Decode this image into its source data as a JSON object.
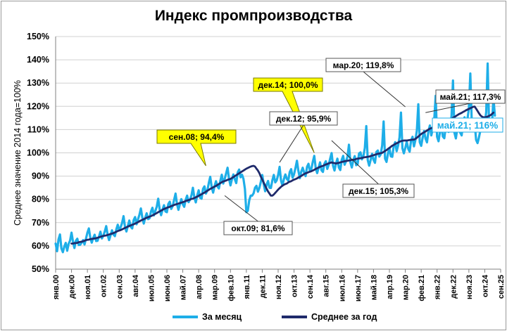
{
  "chart_data": {
    "type": "line",
    "title": "Индекс промпроизводства",
    "ylabel": "Среднее значение 2014 года=100%",
    "xlabel": "",
    "ylim": [
      50,
      150
    ],
    "y_ticks": [
      "50%",
      "60%",
      "70%",
      "80%",
      "90%",
      "100%",
      "110%",
      "120%",
      "130%",
      "140%",
      "150%"
    ],
    "x_ticks": [
      "янв.00",
      "дек.00",
      "ноя.01",
      "окт.02",
      "сен.03",
      "авг.04",
      "июл.05",
      "июн.06",
      "май.07",
      "апр.08",
      "мар.09",
      "фев.10",
      "янв.11",
      "дек.11",
      "ноя.12",
      "окт.13",
      "сен.14",
      "авг.15",
      "июл.16",
      "июн.17",
      "май.18",
      "апр.19",
      "мар.20",
      "фев.21",
      "янв.22",
      "дек.22",
      "ноя.23",
      "окт.24",
      "сен.25"
    ],
    "grid": true,
    "legend_position": "bottom",
    "series": [
      {
        "name": "За месяц",
        "color": "#1eaee8",
        "x_start": "янв.00",
        "x_end": "май.21",
        "frequency": "monthly",
        "values": [
          61.0,
          57.7,
          62.8,
          64.9,
          58.9,
          57.3,
          59.7,
          61.3,
          57.9,
          60.9,
          62.3,
          65.7,
          61.9,
          59.1,
          62.2,
          63.1,
          60.4,
          60.5,
          61.4,
          62.5,
          60.6,
          63.1,
          65.7,
          67.5,
          63.5,
          61.4,
          63.4,
          64.8,
          62.1,
          62.2,
          64.0,
          66.1,
          63.2,
          64.3,
          66.2,
          68.5,
          64.7,
          62.5,
          64.5,
          66.7,
          64.9,
          64.2,
          67.1,
          69.1,
          66.7,
          68.0,
          69.9,
          72.8,
          68.2,
          66.2,
          68.6,
          70.9,
          68.2,
          67.5,
          71.1,
          72.4,
          69.3,
          71.4,
          73.4,
          76.1,
          72.2,
          69.6,
          72.1,
          74.0,
          71.5,
          71.9,
          74.8,
          76.4,
          73.1,
          75.0,
          76.9,
          80.3,
          75.7,
          73.2,
          75.6,
          77.5,
          74.8,
          74.5,
          78.0,
          79.0,
          75.9,
          77.1,
          79.8,
          82.5,
          77.9,
          75.5,
          77.9,
          80.1,
          77.9,
          76.8,
          79.8,
          81.6,
          78.8,
          79.9,
          81.7,
          85.0,
          80.8,
          78.7,
          81.7,
          83.9,
          80.7,
          80.3,
          84.5,
          85.6,
          82.5,
          83.8,
          87.0,
          89.7,
          85.3,
          82.9,
          85.7,
          87.8,
          85.5,
          84.7,
          88.0,
          90.6,
          86.8,
          88.8,
          91.2,
          93.6,
          88.8,
          86.0,
          88.6,
          90.7,
          88.7,
          87.0,
          91.6,
          92.8,
          89.5,
          90.6,
          88.8,
          84.5,
          74.5,
          75.1,
          79.6,
          81.6,
          81.6,
          82.6,
          85.0,
          85.8,
          83.3,
          84.9,
          87.5,
          90.5,
          86.6,
          83.5,
          86.3,
          87.9,
          85.0,
          84.9,
          88.2,
          90.5,
          87.3,
          88.2,
          90.5,
          94.0,
          88.1,
          85.9,
          88.8,
          90.7,
          88.8,
          88.1,
          91.7,
          93.0,
          89.3,
          90.8,
          93.5,
          96.6,
          92.3,
          89.1,
          91.9,
          93.6,
          91.5,
          90.0,
          94.0,
          95.3,
          92.2,
          93.1,
          96.2,
          98.7,
          93.5,
          91.3,
          93.6,
          95.9,
          92.5,
          91.8,
          95.3,
          96.4,
          93.1,
          94.9,
          97.5,
          99.9,
          94.5,
          92.4,
          95.3,
          97.5,
          93.7,
          92.6,
          97.0,
          98.7,
          94.9,
          96.4,
          98.4,
          103.5,
          95.9,
          93.7,
          96.9,
          98.6,
          94.7,
          95.1,
          99.8,
          100.2,
          97.2,
          98.6,
          102.1,
          111.5,
          96.9,
          94.5,
          96.9,
          99.6,
          97.0,
          95.7,
          100.4,
          101.0,
          98.4,
          99.4,
          103.2,
          113.5,
          97.5,
          96.1,
          99.7,
          102.1,
          98.5,
          98.3,
          103.0,
          104.6,
          100.7,
          103.1,
          106.6,
          117.3,
          102.0,
          99.8,
          102.1,
          104.8,
          101.8,
          100.5,
          105.3,
          106.9,
          102.8,
          105.5,
          109.6,
          120.9,
          104.6,
          103.0,
          106.5,
          109.4,
          106.1,
          104.5,
          109.1,
          111.8,
          107.5,
          110.3,
          113.8,
          124.5,
          106.9,
          105.0,
          109.0,
          111.5,
          107.0,
          106.3,
          111.3,
          113.6,
          109.0,
          111.0,
          115.9,
          131.1,
          108.7,
          106.2,
          110.5,
          114.5,
          108.7,
          107.5,
          112.7,
          115.3,
          111.3,
          114.5,
          118.9,
          134.1,
          113.2,
          112.4,
          113.0,
          105.6,
          104.2,
          106.7,
          109.7,
          114.2,
          111.0,
          112.4,
          117.6,
          138.4,
          111.2,
          109.3,
          112.5,
          123.6,
          116.0
        ]
      },
      {
        "name": "Среднее за год",
        "color": "#1f2a6b",
        "x_start": "дек.00",
        "x_end": "май.21",
        "frequency": "monthly",
        "values": [
          61.0,
          61.0,
          61.2,
          61.2,
          61.3,
          61.6,
          61.7,
          61.8,
          62.0,
          62.2,
          62.5,
          62.6,
          62.7,
          62.9,
          63.0,
          63.1,
          63.2,
          63.3,
          63.5,
          63.7,
          63.9,
          64.1,
          64.3,
          64.4,
          64.5,
          64.7,
          64.9,
          65.1,
          65.3,
          65.5,
          65.8,
          66.1,
          66.4,
          66.6,
          66.8,
          67.1,
          67.4,
          67.7,
          68.0,
          68.3,
          68.6,
          68.8,
          69.1,
          69.3,
          69.6,
          69.9,
          70.2,
          70.6,
          70.9,
          71.2,
          71.5,
          71.8,
          72.1,
          72.3,
          72.6,
          72.8,
          73.1,
          73.4,
          73.8,
          74.1,
          74.5,
          74.8,
          75.2,
          75.5,
          75.9,
          76.1,
          76.4,
          76.6,
          76.8,
          77.1,
          77.3,
          77.6,
          77.8,
          78.0,
          78.2,
          78.4,
          78.6,
          78.8,
          79.0,
          79.3,
          79.5,
          79.7,
          79.9,
          80.2,
          80.3,
          80.6,
          80.9,
          81.2,
          81.5,
          81.9,
          82.2,
          82.6,
          82.9,
          83.3,
          83.7,
          84.1,
          84.5,
          84.8,
          85.2,
          85.5,
          85.8,
          86.2,
          86.6,
          87.0,
          87.4,
          87.7,
          87.9,
          88.1,
          88.4,
          88.6,
          88.8,
          89.2,
          89.6,
          90.0,
          90.4,
          90.8,
          91.2,
          91.6,
          92.0,
          92.4,
          92.8,
          93.2,
          93.5,
          93.8,
          94.1,
          94.3,
          94.4,
          94.1,
          93.2,
          92.4,
          91.3,
          89.8,
          88.5,
          87.2,
          85.9,
          84.6,
          83.4,
          82.5,
          81.6,
          81.6,
          82.1,
          82.8,
          83.5,
          84.2,
          84.8,
          85.4,
          85.9,
          86.3,
          86.6,
          86.8,
          87.3,
          87.6,
          87.8,
          88.2,
          88.5,
          88.7,
          89.0,
          89.4,
          89.7,
          90.1,
          90.5,
          90.9,
          91.2,
          91.4,
          91.7,
          91.9,
          92.1,
          92.4,
          92.7,
          93.1,
          93.4,
          93.7,
          94.0,
          94.2,
          94.4,
          94.7,
          95.0,
          95.2,
          95.5,
          95.7,
          95.9,
          95.7,
          95.6,
          95.4,
          95.6,
          95.7,
          95.9,
          96.1,
          96.2,
          96.4,
          96.5,
          96.6,
          96.7,
          96.8,
          97.0,
          97.0,
          97.1,
          97.4,
          97.5,
          97.6,
          97.7,
          97.8,
          98.0,
          98.1,
          98.2,
          98.3,
          98.4,
          98.6,
          98.8,
          99.0,
          99.2,
          99.4,
          99.6,
          99.7,
          99.9,
          100.0,
          100.4,
          100.8,
          101.2,
          101.7,
          102.1,
          102.6,
          103.1,
          103.4,
          103.8,
          104.1,
          104.4,
          104.8,
          105.0,
          105.2,
          105.3,
          105.3,
          105.3,
          105.4,
          105.5,
          105.6,
          105.7,
          105.7,
          106.0,
          106.5,
          107.0,
          107.6,
          108.1,
          108.5,
          108.8,
          109.2,
          109.6,
          110.0,
          110.4,
          110.6,
          110.9,
          111.1,
          111.4,
          111.6,
          111.9,
          112.0,
          112.2,
          112.6,
          112.9,
          113.3,
          113.6,
          114.0,
          114.4,
          114.7,
          115.1,
          115.4,
          115.8,
          116.2,
          116.6,
          116.9,
          117.2,
          117.6,
          117.9,
          118.3,
          118.6,
          118.9,
          119.2,
          119.5,
          119.8,
          119.9,
          119.0,
          118.0,
          117.0,
          116.1,
          115.6,
          115.3,
          115.3,
          115.4,
          115.6,
          115.9,
          116.2,
          116.7,
          117.3
        ]
      }
    ],
    "annotations": [
      {
        "text": "сен.08; 94,4%",
        "x": "сен.08",
        "y": 94.4,
        "style": "yellow-callout"
      },
      {
        "text": "дек.14; 100,0%",
        "x": "дек.14",
        "y": 100.0,
        "style": "yellow-callout"
      },
      {
        "text": "окт.09; 81,6%",
        "x": "окт.09",
        "y": 81.6,
        "style": "box"
      },
      {
        "text": "дек.12; 95,9%",
        "x": "дек.12",
        "y": 95.9,
        "style": "box"
      },
      {
        "text": "дек.15; 105,3%",
        "x": "дек.15",
        "y": 105.3,
        "style": "box"
      },
      {
        "text": "мар.20; 119,8%",
        "x": "мар.20",
        "y": 119.8,
        "style": "box"
      },
      {
        "text": "май.21; 117,3%",
        "x": "май.21",
        "y": 117.3,
        "style": "box"
      },
      {
        "text": "май.21; 116%",
        "x": "май.21",
        "y": 116,
        "style": "blue-label"
      }
    ]
  }
}
